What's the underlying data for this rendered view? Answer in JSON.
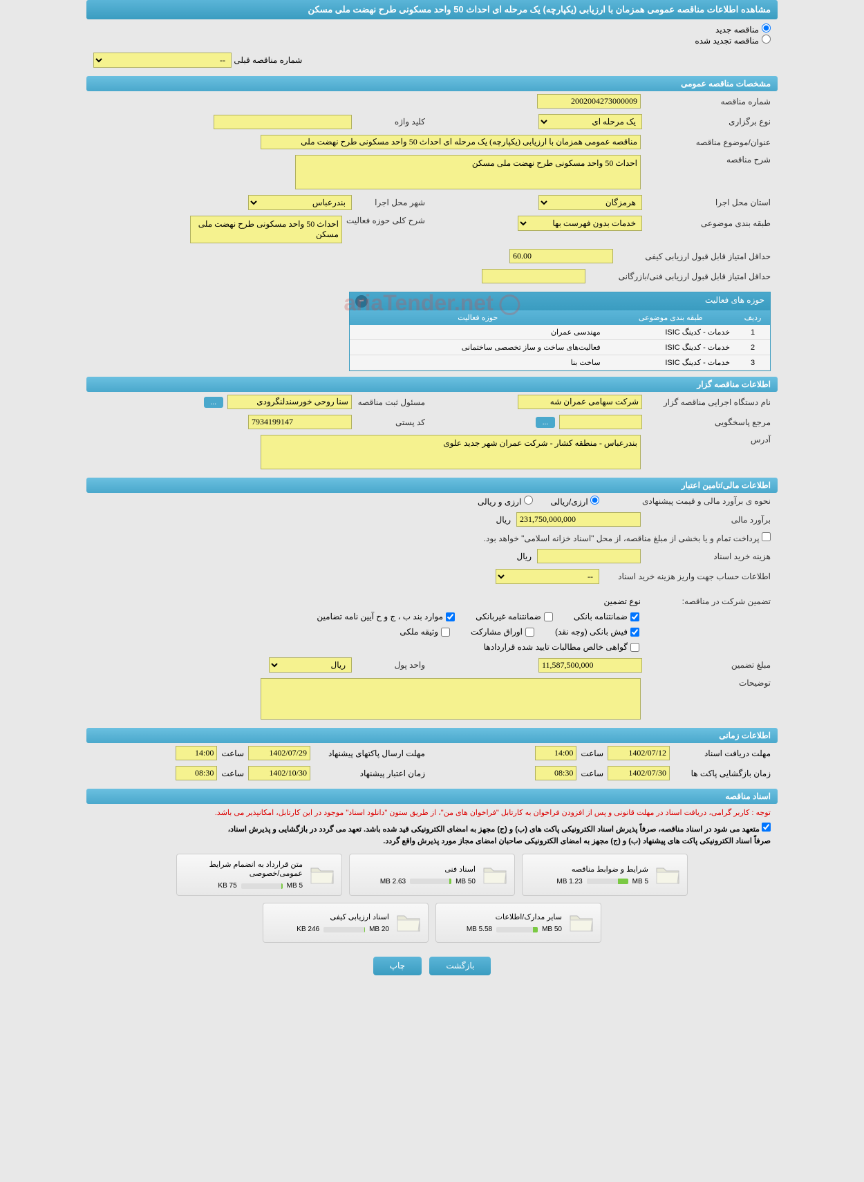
{
  "header": {
    "title": "مشاهده اطلاعات مناقصه عمومی همزمان با ارزیابی (یکپارچه) یک مرحله ای احداث 50 واحد مسکونی طرح نهضت ملی مسکن"
  },
  "radios": {
    "new_tender": "مناقصه جدید",
    "renewed_tender": "مناقصه تجدید شده"
  },
  "prev_tender": {
    "label": "شماره مناقصه قبلی",
    "value": "--"
  },
  "sections": {
    "general": "مشخصات مناقصه عمومی",
    "organizer": "اطلاعات مناقصه گزار",
    "financial": "اطلاعات مالی/تامین اعتبار",
    "timing": "اطلاعات زمانی",
    "documents": "اسناد مناقصه"
  },
  "general": {
    "tender_number_label": "شماره مناقصه",
    "tender_number": "2002004273000009",
    "holding_type_label": "نوع برگزاری",
    "holding_type": "یک مرحله ای",
    "keyword_label": "کلید واژه",
    "keyword": "",
    "title_label": "عنوان/موضوع مناقصه",
    "title": "مناقصه عمومی همزمان با ارزیابی (یکپارچه) یک مرحله ای احداث 50 واحد مسکونی طرح نهضت ملی",
    "description_label": "شرح مناقصه",
    "description": "احداث 50 واحد مسکونی طرح نهضت ملی مسکن",
    "province_label": "استان محل اجرا",
    "province": "هرمزگان",
    "city_label": "شهر محل اجرا",
    "city": "بندرعباس",
    "category_label": "طبقه بندی موضوعی",
    "category": "خدمات بدون فهرست بها",
    "activity_desc_label": "شرح کلی حوزه فعالیت",
    "activity_desc": "احداث 50 واحد مسکونی طرح نهضت ملی مسکن",
    "min_quality_score_label": "حداقل امتیاز قابل قبول ارزیابی کیفی",
    "min_quality_score": "60.00",
    "min_tech_score_label": "حداقل امتیاز قابل قبول ارزیابی فنی/بازرگانی"
  },
  "activities": {
    "title": "حوزه های فعالیت",
    "columns": {
      "row": "ردیف",
      "category": "طبقه بندی موضوعی",
      "field": "حوزه فعالیت"
    },
    "rows": [
      {
        "n": "1",
        "cat": "خدمات - کدینگ ISIC",
        "field": "مهندسی عمران"
      },
      {
        "n": "2",
        "cat": "خدمات - کدینگ ISIC",
        "field": "فعالیت‌های ساخت و ساز تخصصی ساختمانی"
      },
      {
        "n": "3",
        "cat": "خدمات - کدینگ ISIC",
        "field": "ساخت بنا"
      }
    ]
  },
  "organizer": {
    "name_label": "نام دستگاه اجرایی مناقصه گزار",
    "name": "شرکت سهامی عمران شه",
    "responsible_label": "مسئول ثبت مناقصه",
    "responsible": "سنا روحی خورسندلنگرودی",
    "more_btn": "...",
    "accountable_label": "مرجع پاسخگویی",
    "accountable_btn": "...",
    "postal_label": "کد پستی",
    "postal": "7934199147",
    "address_label": "آدرس",
    "address": "بندرعباس - منطقه کشار - شرکت عمران شهر جدید علوی"
  },
  "financial": {
    "estimate_method_label": "نحوه ی برآورد مالی و قیمت پیشنهادی",
    "currency_rial": "ارزی/ریالی",
    "currency_both": "ارزی و ریالی",
    "estimate_label": "برآورد مالی",
    "estimate_value": "231,750,000,000",
    "estimate_unit": "ریال",
    "payment_note": "پرداخت تمام و یا بخشی از مبلغ مناقصه، از محل \"اسناد خزانه اسلامی\" خواهد بود.",
    "doc_fee_label": "هزینه خرید اسناد",
    "doc_fee_unit": "ریال",
    "account_info_label": "اطلاعات حساب جهت واریز هزینه خرید اسناد",
    "account_info_value": "--"
  },
  "guarantee": {
    "title_label": "تضمین شرکت در مناقصه:",
    "type_label": "نوع تضمین",
    "bank_guarantee": "ضمانتنامه بانکی",
    "nonbank_guarantee": "ضمانتنامه غیربانکی",
    "clauses": "موارد بند ب ، ج و ح آیین نامه تضامین",
    "bank_receipt": "فیش بانکی (وجه نقد)",
    "participation": "اوراق مشارکت",
    "property": "وثیقه ملکی",
    "net_claims": "گواهی خالص مطالبات تایید شده قراردادها",
    "amount_label": "مبلغ تضمین",
    "amount": "11,587,500,000",
    "currency_label": "واحد پول",
    "currency": "ریال",
    "notes_label": "توضیحات"
  },
  "timing": {
    "doc_receipt_label": "مهلت دریافت اسناد",
    "doc_receipt_date": "1402/07/12",
    "time_label": "ساعت",
    "doc_receipt_time": "14:00",
    "packet_send_label": "مهلت ارسال پاکتهای پیشنهاد",
    "packet_send_date": "1402/07/29",
    "packet_send_time": "14:00",
    "opening_label": "زمان بازگشایی پاکت ها",
    "opening_date": "1402/07/30",
    "opening_time": "08:30",
    "validity_label": "زمان اعتبار پیشنهاد",
    "validity_date": "1402/10/30",
    "validity_time": "08:30"
  },
  "documents": {
    "red_note": "توجه : کاربر گرامی، دریافت اسناد در مهلت قانونی و پس از افزودن فراخوان به کارتابل \"فراخوان های من\"، از طریق ستون \"دانلود اسناد\" موجود در این کارتابل، امکانپذیر می باشد.",
    "bold_note1": "متعهد می شود در اسناد مناقصه، صرفاً پذیرش اسناد الکترونیکی پاکت های (ب) و (ج) مجهز به امضای الکترونیکی قید شده باشد. تعهد می گردد در بازگشایی و پذیرش اسناد،",
    "bold_note2": "صرفاً اسناد الکترونیکی پاکت های پیشنهاد (ب) و (ج) مجهز به امضای الکترونیکی صاحبان امضای مجاز مورد پذیرش واقع گردد.",
    "files": [
      {
        "title": "شرایط و ضوابط مناقصه",
        "size": "1.23 MB",
        "max": "5 MB",
        "pct": 25
      },
      {
        "title": "اسناد فنی",
        "size": "2.63 MB",
        "max": "50 MB",
        "pct": 6
      },
      {
        "title": "متن قرارداد به انضمام شرایط عمومی/خصوصی",
        "size": "75 KB",
        "max": "5 MB",
        "pct": 2
      },
      {
        "title": "سایر مدارک/اطلاعات",
        "size": "5.58 MB",
        "max": "50 MB",
        "pct": 12
      },
      {
        "title": "اسناد ارزیابی کیفی",
        "size": "246 KB",
        "max": "20 MB",
        "pct": 2
      }
    ]
  },
  "footer": {
    "back": "بازگشت",
    "print": "چاپ"
  },
  "watermark": "ariaTender.net",
  "colors": {
    "header_bg": "#4aa8cc",
    "yellow": "#f5f28f",
    "red": "#d00000",
    "green": "#7ac943"
  }
}
